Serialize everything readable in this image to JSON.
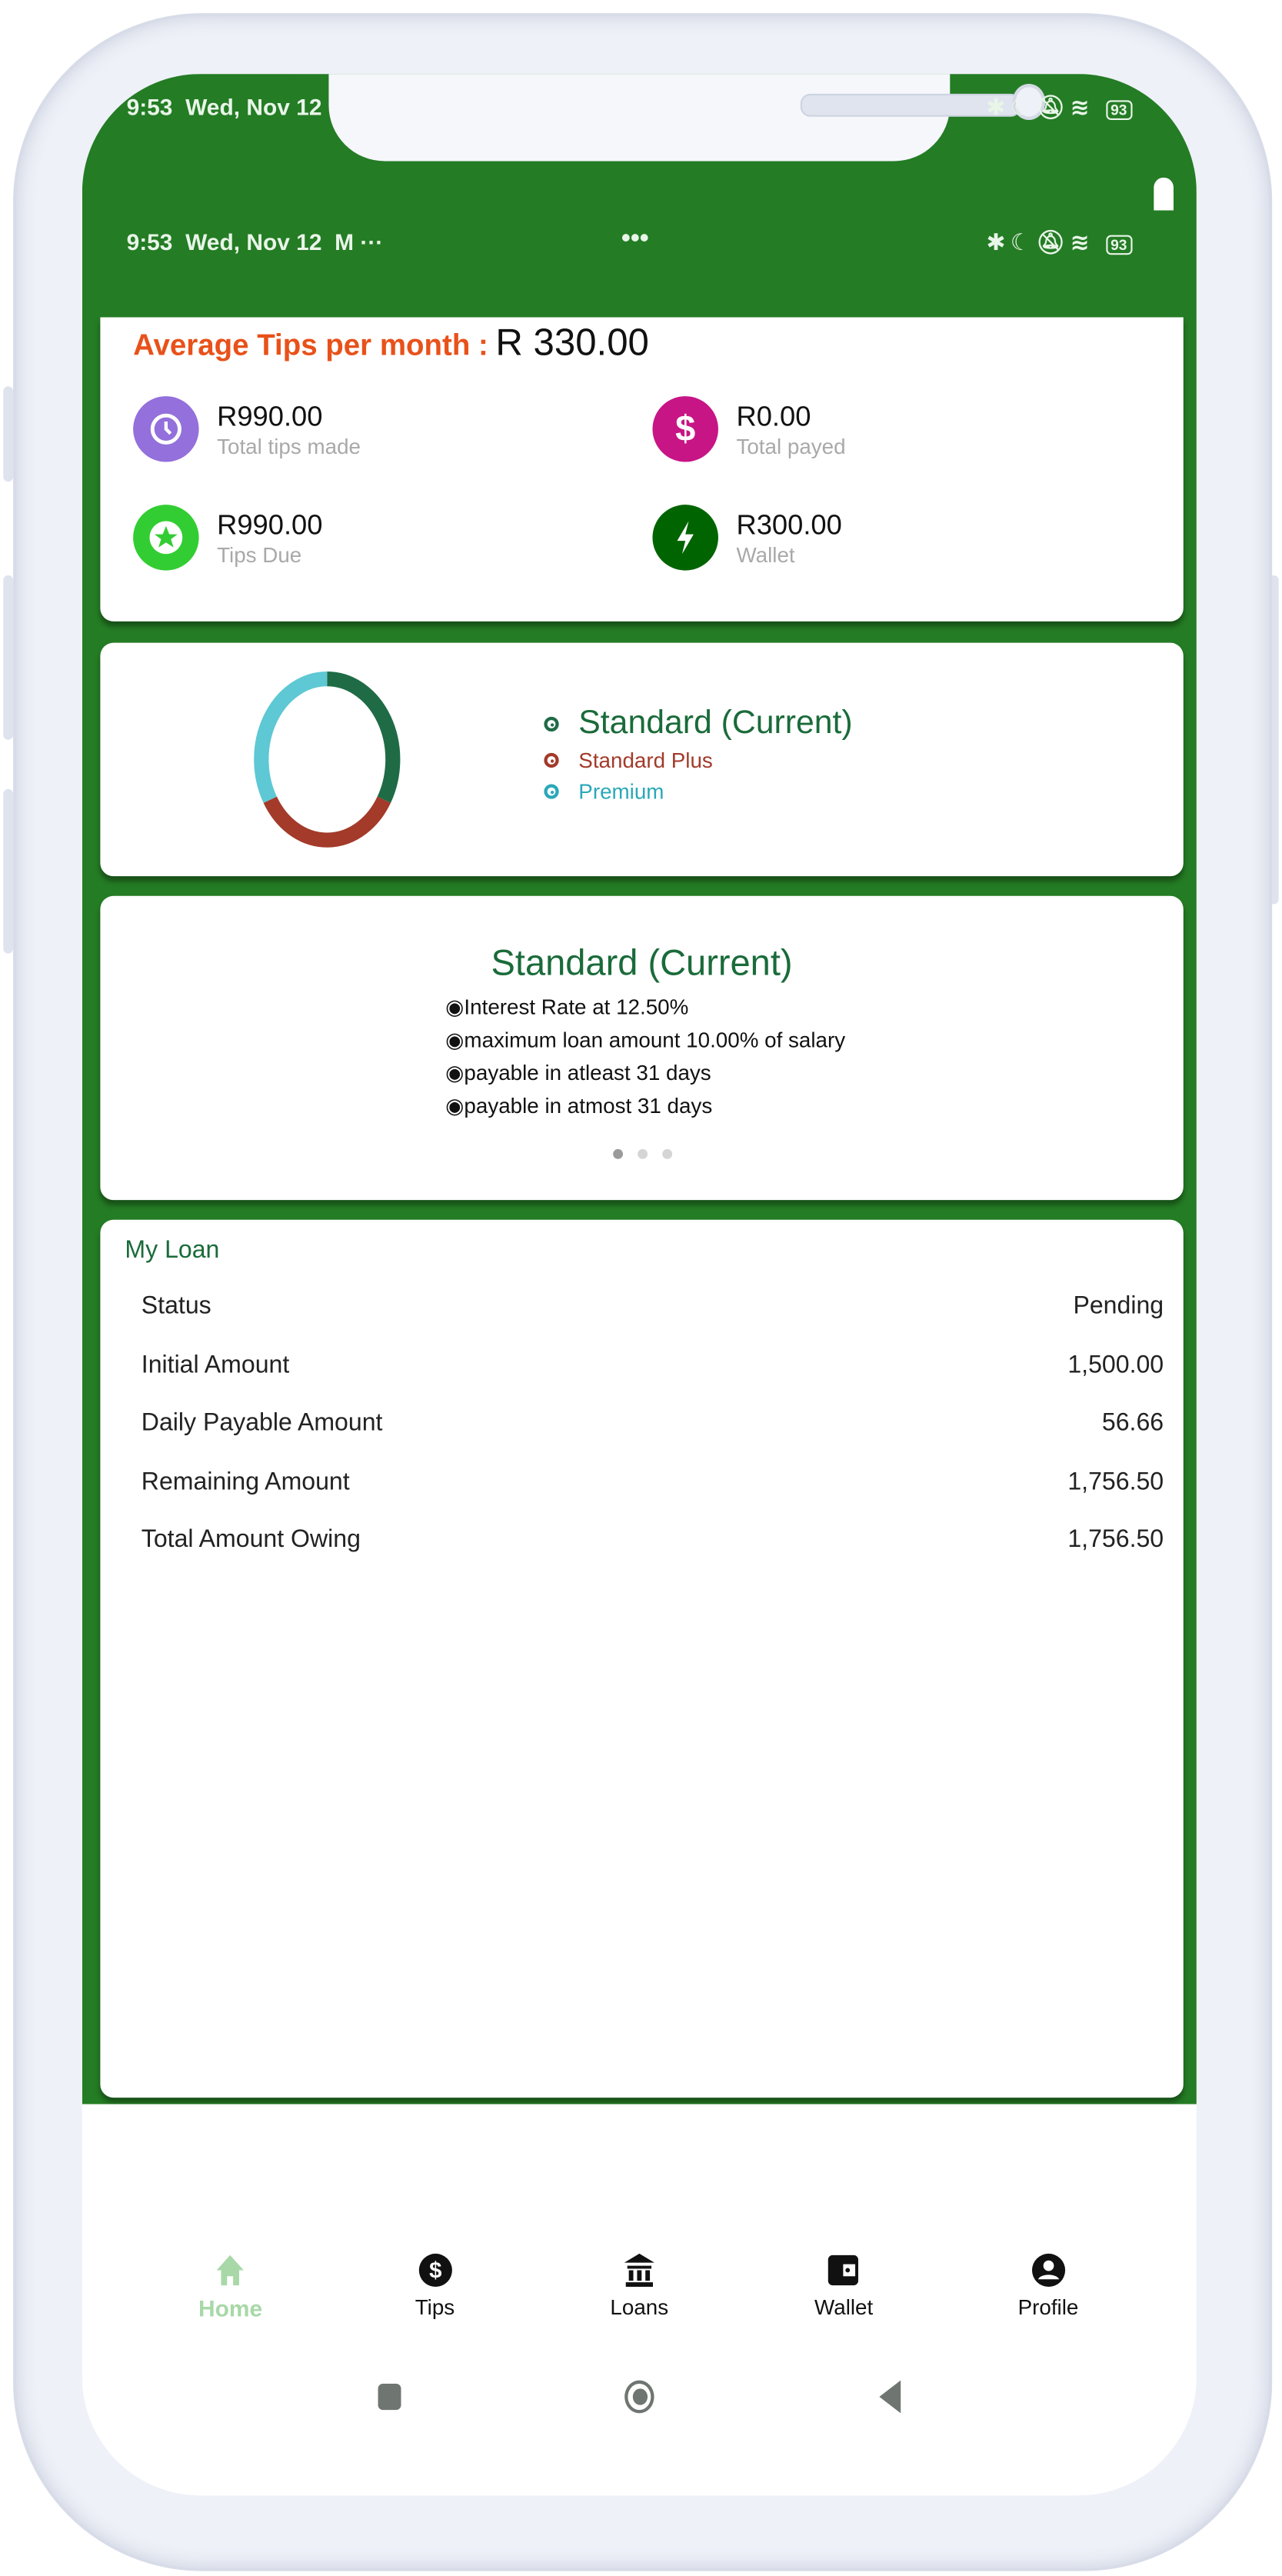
{
  "status_bar": {
    "time": "9:53",
    "date": "Wed, Nov 12",
    "battery": "93",
    "center_dots": "•••"
  },
  "summary": {
    "avg_label": "Average Tips per month :",
    "avg_value": "R 330.00",
    "stats": [
      {
        "value": "R990.00",
        "label": "Total tips made",
        "icon": "clock-icon",
        "color": "#9370db"
      },
      {
        "value": "R0.00",
        "label": "Total payed",
        "icon": "dollar-icon",
        "color": "#c71585"
      },
      {
        "value": "R990.00",
        "label": "Tips Due",
        "icon": "star-icon",
        "color": "#32cd32"
      },
      {
        "value": "R300.00",
        "label": "Wallet",
        "icon": "lightning-icon",
        "color": "#006400"
      }
    ]
  },
  "chart_data": {
    "type": "pie",
    "categories": [
      "Standard (Current)",
      "Standard Plus",
      "Premium"
    ],
    "values": [
      1,
      1,
      1
    ],
    "colors": [
      "#1f6b45",
      "#a33a2a",
      "#5ec8d4"
    ],
    "legend_position": "right"
  },
  "plan": {
    "title": "Standard (Current)",
    "features": [
      "Interest Rate at 12.50%",
      "maximum loan amount 10.00% of salary",
      "payable in atleast 31 days",
      "payable in atmost 31 days"
    ],
    "carousel_pages": 3,
    "carousel_active": 1
  },
  "loan": {
    "title": "My Loan",
    "rows": [
      {
        "label": "Status",
        "value": "Pending"
      },
      {
        "label": "Initial Amount",
        "value": "1,500.00"
      },
      {
        "label": "Daily Payable Amount",
        "value": "56.66"
      },
      {
        "label": "Remaining Amount",
        "value": "1,756.50"
      },
      {
        "label": "Total Amount Owing",
        "value": "1,756.50"
      }
    ]
  },
  "bottom_nav": {
    "active": "Home",
    "active_color": "#a8d8a8",
    "items": [
      {
        "label": "Home",
        "icon": "home-icon"
      },
      {
        "label": "Tips",
        "icon": "dollar-circle-icon"
      },
      {
        "label": "Loans",
        "icon": "bank-icon"
      },
      {
        "label": "Wallet",
        "icon": "wallet-icon"
      },
      {
        "label": "Profile",
        "icon": "profile-icon"
      }
    ]
  },
  "accent_color": "#247c24"
}
